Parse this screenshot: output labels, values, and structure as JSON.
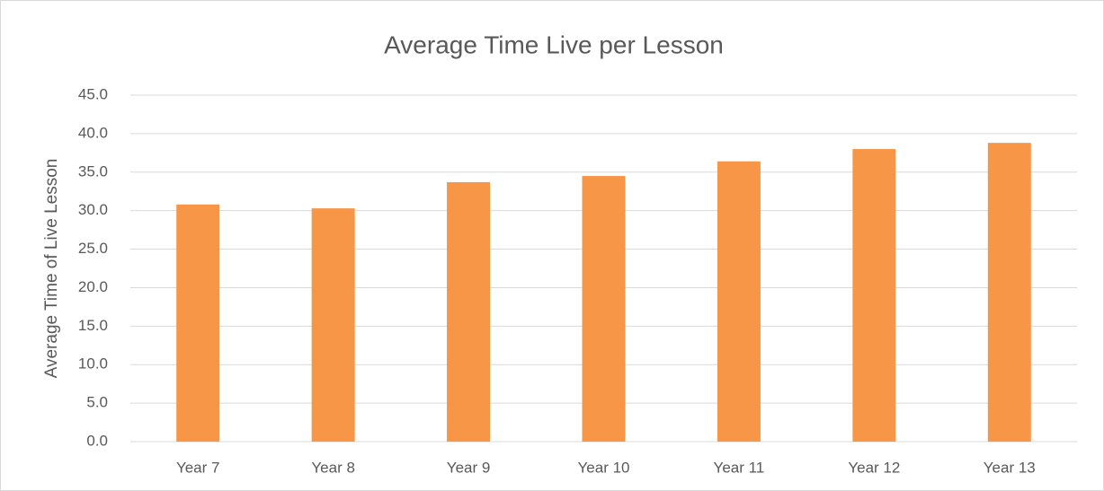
{
  "chart_data": {
    "type": "bar",
    "title": "Average Time Live per Lesson",
    "y_label": "Average Time of Live Lesson",
    "categories": [
      "Year 7",
      "Year 8",
      "Year 9",
      "Year 10",
      "Year 11",
      "Year 12",
      "Year 13"
    ],
    "values": [
      30.8,
      30.3,
      33.7,
      34.5,
      36.4,
      38.0,
      38.8
    ],
    "color": "#f79646",
    "ylim": [
      0,
      45
    ],
    "yticks": [
      {
        "value": 0,
        "label": "0.0"
      },
      {
        "value": 5,
        "label": "5.0"
      },
      {
        "value": 10,
        "label": "10.0"
      },
      {
        "value": 15,
        "label": "15.0"
      },
      {
        "value": 20,
        "label": "20.0"
      },
      {
        "value": 25,
        "label": "25.0"
      },
      {
        "value": 30,
        "label": "30.0"
      },
      {
        "value": 35,
        "label": "35.0"
      },
      {
        "value": 40,
        "label": "40.0"
      },
      {
        "value": 45,
        "label": "45.0"
      }
    ],
    "grid": true
  }
}
